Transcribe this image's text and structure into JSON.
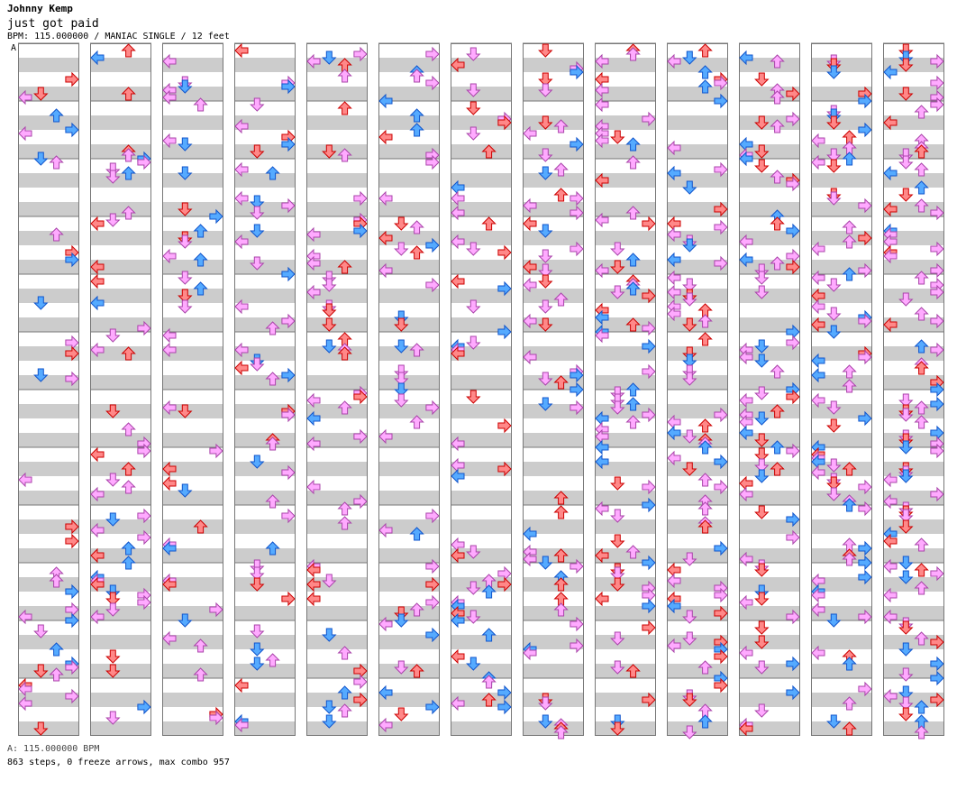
{
  "header": {
    "artist": "Johnny Kemp",
    "title": "just got paid",
    "info": "BPM: 115.000000 / MANIAC SINGLE / 12 feet",
    "bpm_marker": "A"
  },
  "footer": {
    "bpm_line": "A: 115.000000 BPM",
    "stats": "863 steps, 0 freeze arrows, max combo 957"
  },
  "chart": {
    "columns": 13,
    "measures_per_column": 12,
    "colors": {
      "quarter": "#ff8888",
      "eighth": "#55aaff",
      "sixteenth": "#ffaaff",
      "band": "#cccccc",
      "stroke": "#cc0000"
    }
  }
}
